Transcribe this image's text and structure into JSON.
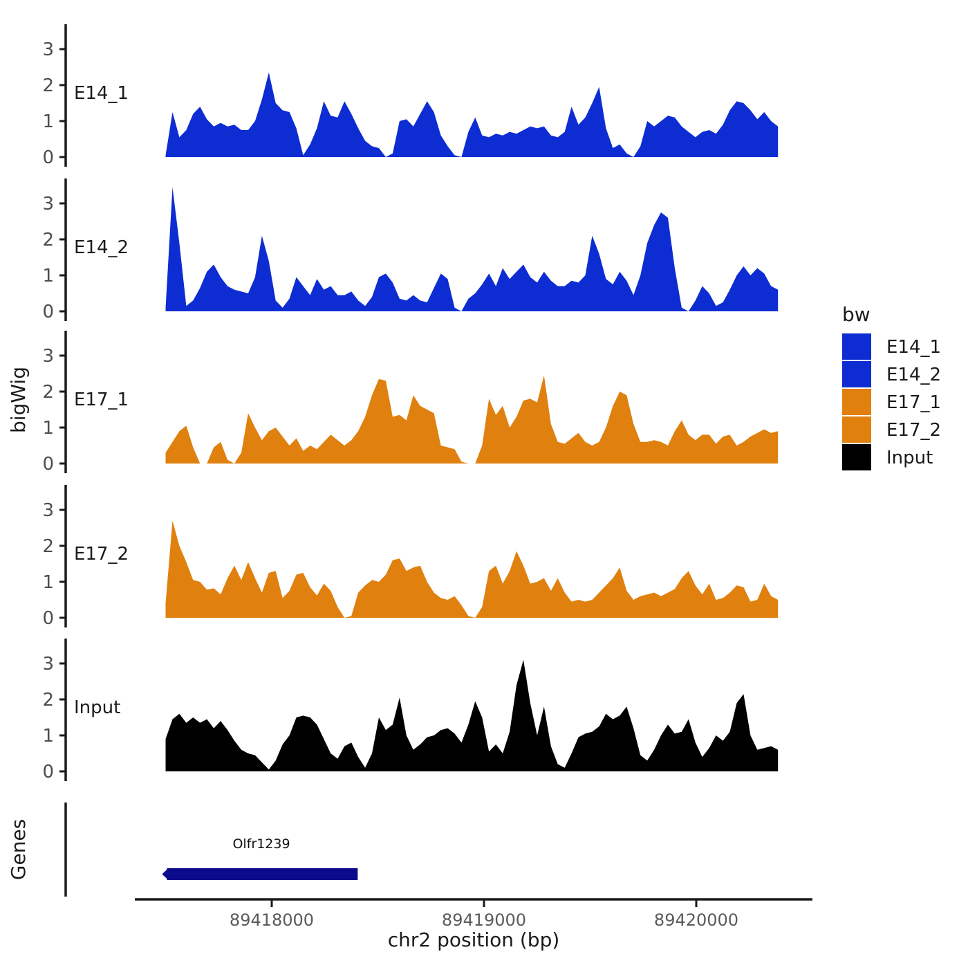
{
  "chart_data": {
    "type": "area",
    "title": "",
    "xlabel": "chr2 position (bp)",
    "ylabel": "bigWig",
    "x_range_bp": [
      89417355,
      89420550
    ],
    "signal_range_bp": [
      89417500,
      89420385
    ],
    "x_ticks": [
      {
        "pos": 89418000,
        "label": "89418000"
      },
      {
        "pos": 89419000,
        "label": "89419000"
      },
      {
        "pos": 89420000,
        "label": "89420000"
      }
    ],
    "y_ticks": [
      "0",
      "1",
      "2",
      "3"
    ],
    "ylim": [
      0,
      3.6
    ],
    "grid": false,
    "legend_position": "right",
    "tracks": [
      {
        "name": "E14_1",
        "color": "#0D2DD3",
        "values": [
          0.05,
          1.25,
          0.55,
          0.75,
          1.2,
          1.4,
          1.05,
          0.85,
          0.95,
          0.85,
          0.9,
          0.75,
          0.75,
          1.0,
          1.6,
          2.35,
          1.5,
          1.3,
          1.25,
          0.8,
          0.05,
          0.35,
          0.8,
          1.55,
          1.15,
          1.1,
          1.55,
          1.2,
          0.8,
          0.45,
          0.3,
          0.25,
          0,
          0.1,
          1.0,
          1.05,
          0.85,
          1.2,
          1.55,
          1.25,
          0.6,
          0.3,
          0.05,
          0,
          0.7,
          1.1,
          0.6,
          0.55,
          0.65,
          0.6,
          0.7,
          0.65,
          0.75,
          0.85,
          0.8,
          0.85,
          0.6,
          0.55,
          0.7,
          1.4,
          0.9,
          1.1,
          1.5,
          1.95,
          0.8,
          0.25,
          0.35,
          0.1,
          0,
          0.3,
          1.0,
          0.85,
          1.0,
          1.15,
          1.1,
          0.85,
          0.7,
          0.55,
          0.7,
          0.75,
          0.65,
          0.9,
          1.3,
          1.55,
          1.5,
          1.3,
          1.05,
          1.25,
          1.0,
          0.85
        ]
      },
      {
        "name": "E14_2",
        "color": "#0D2DD3",
        "values": [
          0.1,
          3.45,
          1.9,
          0.15,
          0.3,
          0.65,
          1.1,
          1.3,
          0.95,
          0.7,
          0.6,
          0.55,
          0.5,
          0.95,
          2.1,
          1.4,
          0.3,
          0.1,
          0.35,
          0.95,
          0.7,
          0.45,
          0.9,
          0.6,
          0.7,
          0.45,
          0.45,
          0.55,
          0.3,
          0.15,
          0.4,
          0.95,
          1.05,
          0.8,
          0.35,
          0.3,
          0.45,
          0.3,
          0.25,
          0.65,
          1.05,
          0.9,
          0.1,
          0,
          0.35,
          0.5,
          0.75,
          1.05,
          0.7,
          1.2,
          0.9,
          1.1,
          1.3,
          0.95,
          0.8,
          1.1,
          0.85,
          0.7,
          0.7,
          0.85,
          0.8,
          1.0,
          2.1,
          1.6,
          0.9,
          0.75,
          1.1,
          0.85,
          0.45,
          1.0,
          1.9,
          2.4,
          2.75,
          2.6,
          1.2,
          0.1,
          0,
          0.3,
          0.7,
          0.5,
          0.15,
          0.25,
          0.6,
          1.0,
          1.25,
          1.0,
          1.2,
          1.05,
          0.7,
          0.6
        ]
      },
      {
        "name": "E17_1",
        "color": "#E0800E",
        "values": [
          0.3,
          0.6,
          0.9,
          1.05,
          0.45,
          0,
          0,
          0.45,
          0.6,
          0.1,
          0,
          0.3,
          1.4,
          1.0,
          0.65,
          0.9,
          1.0,
          0.75,
          0.5,
          0.7,
          0.35,
          0.5,
          0.4,
          0.6,
          0.8,
          0.65,
          0.5,
          0.65,
          0.9,
          1.3,
          1.9,
          2.35,
          2.3,
          1.3,
          1.35,
          1.2,
          1.9,
          1.6,
          1.5,
          1.4,
          0.5,
          0.45,
          0.4,
          0.05,
          0,
          0,
          0.5,
          1.8,
          1.35,
          1.6,
          1.0,
          1.3,
          1.75,
          1.8,
          1.7,
          2.45,
          1.1,
          0.6,
          0.55,
          0.7,
          0.85,
          0.6,
          0.5,
          0.6,
          1.0,
          1.6,
          2.0,
          1.9,
          1.1,
          0.6,
          0.6,
          0.65,
          0.6,
          0.5,
          0.9,
          1.2,
          0.8,
          0.65,
          0.8,
          0.8,
          0.55,
          0.75,
          0.8,
          0.5,
          0.6,
          0.75,
          0.85,
          0.95,
          0.85,
          0.9
        ]
      },
      {
        "name": "E17_2",
        "color": "#E0800E",
        "values": [
          0.4,
          2.7,
          2.0,
          1.55,
          1.05,
          1.0,
          0.78,
          0.82,
          0.65,
          1.1,
          1.45,
          1.05,
          1.55,
          1.1,
          0.7,
          1.25,
          1.3,
          0.55,
          0.75,
          1.2,
          1.25,
          0.85,
          0.62,
          0.95,
          0.75,
          0.3,
          0,
          0.05,
          0.7,
          0.9,
          1.05,
          1.0,
          1.2,
          1.6,
          1.65,
          1.3,
          1.4,
          1.45,
          1.0,
          0.7,
          0.55,
          0.5,
          0.6,
          0.35,
          0.05,
          0,
          0.3,
          1.3,
          1.45,
          0.95,
          1.3,
          1.85,
          1.45,
          0.95,
          1.0,
          1.1,
          0.75,
          1.1,
          0.7,
          0.45,
          0.5,
          0.45,
          0.5,
          0.7,
          0.9,
          1.1,
          1.4,
          0.75,
          0.5,
          0.6,
          0.65,
          0.7,
          0.6,
          0.7,
          0.8,
          1.1,
          1.3,
          0.9,
          0.65,
          0.95,
          0.5,
          0.55,
          0.7,
          0.9,
          0.85,
          0.45,
          0.5,
          0.95,
          0.6,
          0.5
        ]
      },
      {
        "name": "Input",
        "color": "#000000",
        "values": [
          0.9,
          1.45,
          1.6,
          1.35,
          1.5,
          1.35,
          1.45,
          1.2,
          1.4,
          1.15,
          0.85,
          0.6,
          0.5,
          0.45,
          0.25,
          0.05,
          0.3,
          0.75,
          1.0,
          1.5,
          1.55,
          1.5,
          1.3,
          0.9,
          0.5,
          0.35,
          0.7,
          0.8,
          0.4,
          0.1,
          0.5,
          1.5,
          1.15,
          1.3,
          2.05,
          1.0,
          0.6,
          0.75,
          0.95,
          1.0,
          1.15,
          1.2,
          1.05,
          0.8,
          1.3,
          1.95,
          1.5,
          0.55,
          0.75,
          0.5,
          1.1,
          2.4,
          3.1,
          1.9,
          1.0,
          1.8,
          0.7,
          0.2,
          0.1,
          0.5,
          0.95,
          1.05,
          1.1,
          1.25,
          1.6,
          1.45,
          1.55,
          1.8,
          1.2,
          0.45,
          0.3,
          0.6,
          1.0,
          1.3,
          1.05,
          1.1,
          1.45,
          0.8,
          0.4,
          0.65,
          1.0,
          0.85,
          1.1,
          1.9,
          2.15,
          1.0,
          0.6,
          0.65,
          0.7,
          0.6
        ]
      }
    ],
    "genes": {
      "panel_label": "Genes",
      "items": [
        {
          "name": "Olfr1239",
          "start_bp": 89417490,
          "end_bp": 89418405,
          "color": "#0A0A8A",
          "strand": "-"
        }
      ]
    },
    "legend": {
      "title": "bw",
      "entries": [
        {
          "label": "E14_1",
          "color": "#0D2DD3"
        },
        {
          "label": "E14_2",
          "color": "#0D2DD3"
        },
        {
          "label": "E17_1",
          "color": "#E0800E"
        },
        {
          "label": "E17_2",
          "color": "#E0800E"
        },
        {
          "label": "Input",
          "color": "#000000"
        }
      ]
    },
    "colors": {
      "axis": "#1b1b1b",
      "y_tick_label": "#4d4d4d",
      "x_tick_label": "#5b5b5b",
      "text": "#1b1b1b"
    }
  }
}
